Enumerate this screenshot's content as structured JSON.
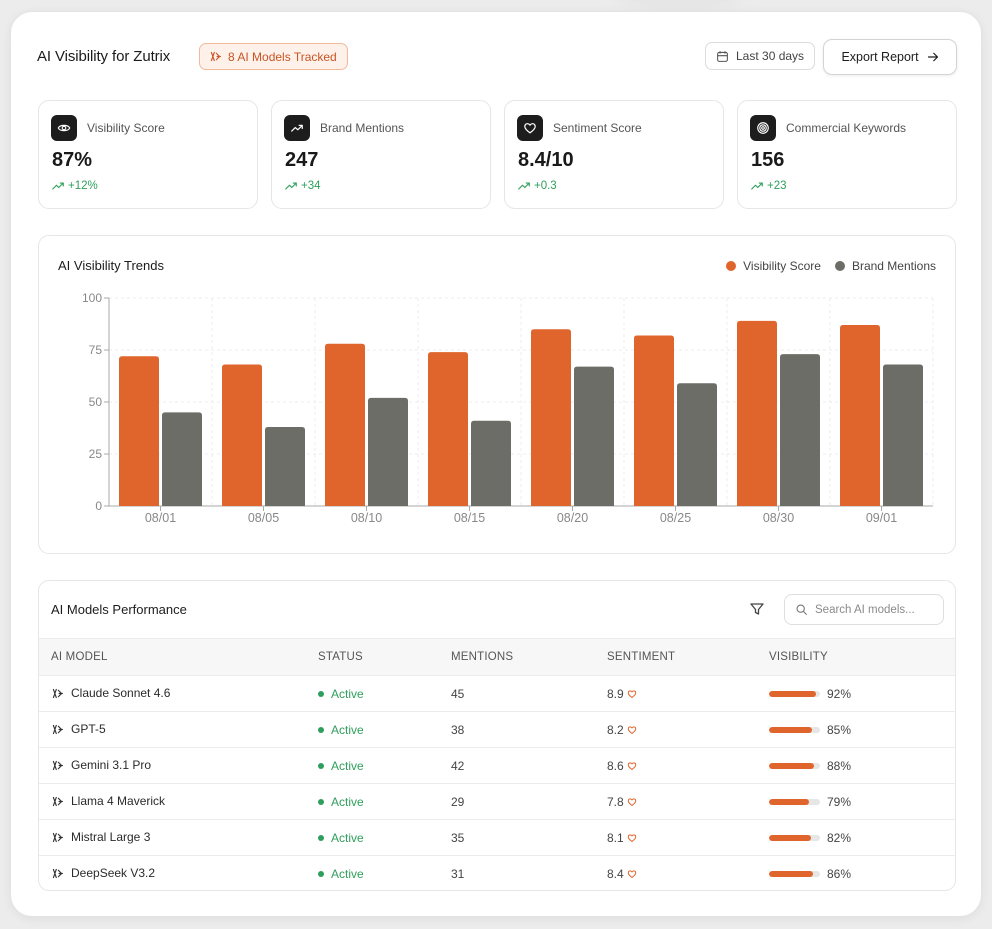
{
  "header": {
    "title": "AI Visibility for Zutrix",
    "models_badge": "8 AI Models Tracked",
    "date_range": "Last 30 days",
    "export_label": "Export Report"
  },
  "stats": [
    {
      "icon": "eye-icon",
      "label": "Visibility Score",
      "value": "87%",
      "change": "+12%"
    },
    {
      "icon": "trend-up-icon",
      "label": "Brand Mentions",
      "value": "247",
      "change": "+34"
    },
    {
      "icon": "heart-icon",
      "label": "Sentiment Score",
      "value": "8.4/10",
      "change": "+0.3"
    },
    {
      "icon": "target-icon",
      "label": "Commercial Keywords",
      "value": "156",
      "change": "+23"
    }
  ],
  "chart": {
    "title": "AI Visibility Trends",
    "legend": [
      "Visibility Score",
      "Brand Mentions"
    ]
  },
  "chart_data": {
    "type": "bar",
    "title": "AI Visibility Trends",
    "categories": [
      "08/01",
      "08/05",
      "08/10",
      "08/15",
      "08/20",
      "08/25",
      "08/30",
      "09/01"
    ],
    "series": [
      {
        "name": "Visibility Score",
        "color": "#df652d",
        "values": [
          72,
          68,
          78,
          74,
          85,
          82,
          89,
          87
        ]
      },
      {
        "name": "Brand Mentions",
        "color": "#6d6d67",
        "values": [
          45,
          38,
          52,
          41,
          67,
          59,
          73,
          68
        ]
      }
    ],
    "yticks": [
      "100",
      "75",
      "50",
      "25",
      "0"
    ],
    "ylim": [
      0,
      100
    ],
    "grid": true,
    "legend_position": "top-right"
  },
  "table": {
    "title": "AI Models Performance",
    "search_placeholder": "Search AI models...",
    "columns": [
      "AI MODEL",
      "STATUS",
      "MENTIONS",
      "SENTIMENT",
      "VISIBILITY"
    ],
    "rows": [
      {
        "model": "Claude Sonnet 4.6",
        "status": "Active",
        "mentions": "45",
        "sentiment": "8.9",
        "visibility": "92%",
        "visibility_value": 92
      },
      {
        "model": "GPT-5",
        "status": "Active",
        "mentions": "38",
        "sentiment": "8.2",
        "visibility": "85%",
        "visibility_value": 85
      },
      {
        "model": "Gemini 3.1 Pro",
        "status": "Active",
        "mentions": "42",
        "sentiment": "8.6",
        "visibility": "88%",
        "visibility_value": 88
      },
      {
        "model": "Llama 4 Maverick",
        "status": "Active",
        "mentions": "29",
        "sentiment": "7.8",
        "visibility": "79%",
        "visibility_value": 79
      },
      {
        "model": "Mistral Large 3",
        "status": "Active",
        "mentions": "35",
        "sentiment": "8.1",
        "visibility": "82%",
        "visibility_value": 82
      },
      {
        "model": "DeepSeek V3.2",
        "status": "Active",
        "mentions": "31",
        "sentiment": "8.4",
        "visibility": "86%",
        "visibility_value": 86
      }
    ]
  },
  "colors": {
    "accent": "#df652d",
    "secondary_bar": "#6d6d67",
    "positive": "#2f9e5c"
  }
}
